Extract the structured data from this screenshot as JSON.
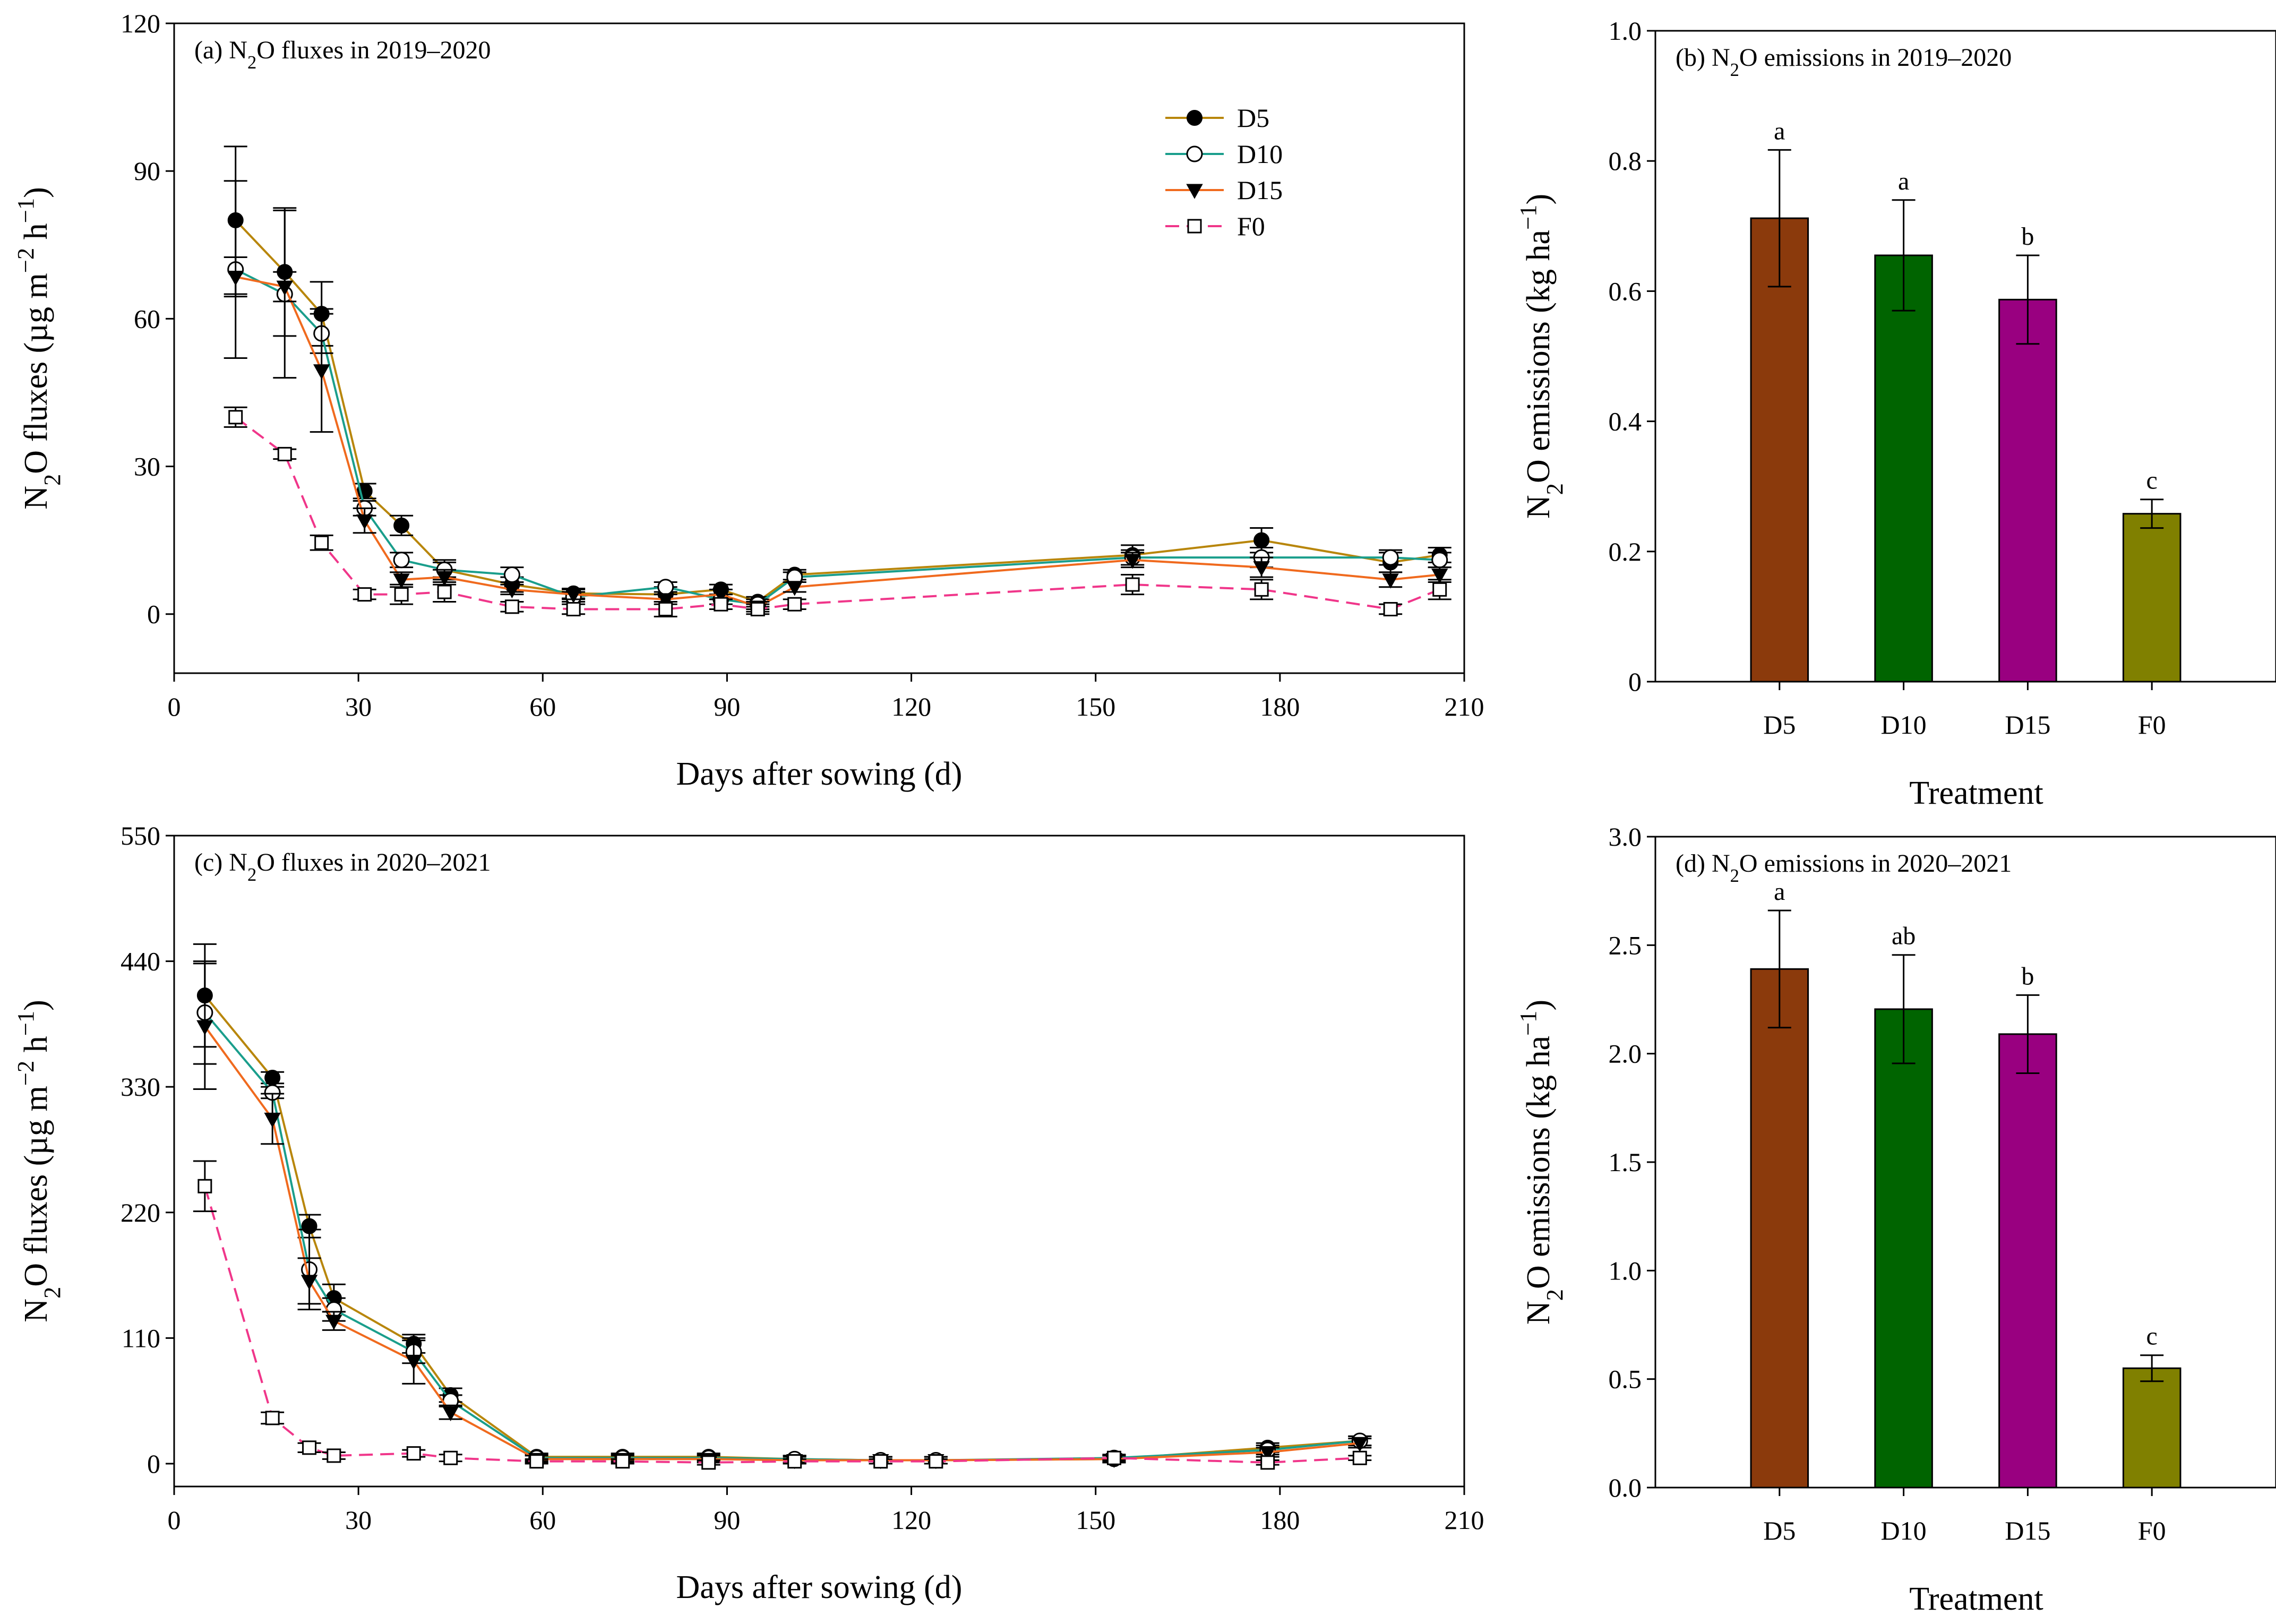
{
  "chart_data": [
    {
      "id": "a",
      "type": "line",
      "title": "(a) N₂O fluxes in 2019–2020",
      "title_prefix": "(a) N",
      "title_sub": "2",
      "title_suffix": "O fluxes in 2019–2020",
      "xlabel": "Days after sowing (d)",
      "ylabel_parts": [
        "N",
        "2",
        "O fluxes (µg m",
        "−2",
        " h",
        "−1",
        ")"
      ],
      "xlim": [
        0,
        210
      ],
      "ylim": [
        -12,
        120
      ],
      "xticks": [
        0,
        30,
        60,
        90,
        120,
        150,
        180,
        210
      ],
      "yticks": [
        0,
        30,
        60,
        90,
        120
      ],
      "legend": [
        "D5",
        "D10",
        "D15",
        "F0"
      ],
      "x": [
        10,
        18,
        24,
        31,
        37,
        44,
        55,
        65,
        80,
        89,
        95,
        101,
        156,
        177,
        198,
        206
      ],
      "series": [
        {
          "name": "D5",
          "color": "#B8860B",
          "marker": "filled-circle",
          "dash": false,
          "values": [
            80,
            69.5,
            61,
            25,
            18,
            9,
            6,
            4.2,
            4,
            5,
            2.5,
            8,
            12,
            15,
            10.5,
            12
          ],
          "errors": [
            15,
            13,
            6.5,
            1.5,
            2,
            2,
            1.5,
            1,
            1.5,
            1,
            1,
            1,
            2,
            2.5,
            2,
            1.5
          ]
        },
        {
          "name": "D10",
          "color": "#1A9E8C",
          "marker": "open-circle",
          "dash": false,
          "values": [
            70,
            65,
            57,
            21.5,
            11,
            9,
            8,
            3.5,
            5.5,
            3,
            2,
            7.5,
            11.5,
            11.5,
            11.5,
            11
          ],
          "errors": [
            18,
            17,
            4,
            1.5,
            1.5,
            1.5,
            1.5,
            1,
            1,
            1,
            1,
            1,
            1.5,
            2,
            1.5,
            1.5
          ]
        },
        {
          "name": "D15",
          "color": "#F06A1E",
          "marker": "filled-triangle",
          "dash": false,
          "values": [
            68.5,
            66.5,
            49.5,
            19,
            7,
            7.5,
            5,
            4,
            3,
            4,
            1.5,
            5.5,
            11,
            9.5,
            7,
            8
          ],
          "errors": [
            4,
            3,
            12.5,
            2.5,
            1.5,
            1.5,
            1,
            1,
            1,
            1,
            1,
            1,
            1.5,
            2,
            1.5,
            1.5
          ]
        },
        {
          "name": "F0",
          "color": "#F0368A",
          "marker": "open-square",
          "dash": true,
          "values": [
            40,
            32.5,
            14.5,
            4,
            4,
            4.5,
            1.5,
            1,
            1,
            2,
            1,
            2,
            6,
            5,
            1,
            5
          ],
          "errors": [
            2,
            1,
            1.5,
            1,
            2,
            2,
            1,
            1,
            1.5,
            1,
            1,
            1,
            2,
            2,
            1,
            2
          ]
        }
      ]
    },
    {
      "id": "b",
      "type": "bar",
      "title": "(b) N₂O emissions in 2019–2020",
      "title_prefix": "(b) N",
      "title_sub": "2",
      "title_suffix": "O emissions in 2019–2020",
      "xlabel": "Treatment",
      "ylabel_parts": [
        "N",
        "2",
        "O emissions (kg ha",
        "−1",
        ")"
      ],
      "ylim": [
        0,
        1.0
      ],
      "yticks": [
        "0",
        "0.2",
        "0.4",
        "0.6",
        "0.8",
        "1.0"
      ],
      "ytick_values": [
        0,
        0.2,
        0.4,
        0.6,
        0.8,
        1.0
      ],
      "categories": [
        "D5",
        "D10",
        "D15",
        "F0"
      ],
      "values": [
        0.712,
        0.655,
        0.587,
        0.258
      ],
      "errors": [
        0.105,
        0.085,
        0.068,
        0.022
      ],
      "letters": [
        "a",
        "a",
        "b",
        "c"
      ],
      "colors": [
        "#8B3A0C",
        "#006400",
        "#990080",
        "#808000"
      ]
    },
    {
      "id": "c",
      "type": "line",
      "title": "(c) N₂O fluxes in 2020–2021",
      "title_prefix": "(c) N",
      "title_sub": "2",
      "title_suffix": "O fluxes in 2020–2021",
      "xlabel": "Days after sowing (d)",
      "ylabel_parts": [
        "N",
        "2",
        "O fluxes (µg m",
        "−2",
        " h",
        "−1",
        ")"
      ],
      "xlim": [
        0,
        210
      ],
      "ylim": [
        -20,
        550
      ],
      "xticks": [
        0,
        30,
        60,
        90,
        120,
        150,
        180,
        210
      ],
      "yticks": [
        0,
        110,
        220,
        330,
        440,
        550
      ],
      "x": [
        5,
        16,
        22,
        26,
        39,
        45,
        59,
        73,
        87,
        101,
        115,
        124,
        153,
        178,
        193
      ],
      "series": [
        {
          "name": "D5",
          "color": "#B8860B",
          "marker": "filled-circle",
          "dash": false,
          "values": [
            410,
            338,
            208,
            145,
            105,
            60,
            6,
            6,
            6,
            4,
            3,
            3,
            4,
            14,
            20
          ],
          "errors": [
            45,
            5,
            10,
            12,
            8,
            6,
            3,
            3,
            3,
            3,
            3,
            3,
            3,
            4,
            4
          ]
        },
        {
          "name": "D10",
          "color": "#1A9E8C",
          "marker": "open-circle",
          "dash": false,
          "values": [
            395,
            325,
            170,
            135,
            98,
            55,
            5,
            5,
            5,
            4,
            3,
            3,
            5,
            12,
            20
          ],
          "errors": [
            45,
            5,
            35,
            10,
            10,
            5,
            3,
            3,
            3,
            3,
            3,
            3,
            3,
            4,
            4
          ]
        },
        {
          "name": "D15",
          "color": "#F06A1E",
          "marker": "filled-triangle",
          "dash": false,
          "values": [
            383,
            302,
            160,
            125,
            90,
            45,
            4,
            4,
            4,
            3,
            3,
            3,
            4,
            10,
            18
          ],
          "errors": [
            55,
            22,
            20,
            8,
            20,
            6,
            3,
            3,
            3,
            3,
            3,
            3,
            3,
            4,
            4
          ]
        },
        {
          "name": "F0",
          "color": "#F0368A",
          "marker": "open-square",
          "dash": true,
          "values": [
            243,
            40,
            14,
            7,
            9,
            5,
            2,
            2,
            1,
            2,
            2,
            2,
            5,
            1,
            5
          ],
          "errors": [
            22,
            5,
            4,
            3,
            3,
            3,
            2,
            2,
            2,
            2,
            2,
            2,
            2,
            2,
            2
          ]
        }
      ]
    },
    {
      "id": "d",
      "type": "bar",
      "title": "(d) N₂O emissions in 2020–2021",
      "title_prefix": "(d) N",
      "title_sub": "2",
      "title_suffix": "O emissions in 2020–2021",
      "xlabel": "Treatment",
      "ylabel_parts": [
        "N",
        "2",
        "O emissions (kg ha",
        "−1",
        ")"
      ],
      "ylim": [
        0,
        3.0
      ],
      "yticks": [
        "0.0",
        "0.5",
        "1.0",
        "1.5",
        "2.0",
        "2.5",
        "3.0"
      ],
      "ytick_values": [
        0,
        0.5,
        1.0,
        1.5,
        2.0,
        2.5,
        3.0
      ],
      "categories": [
        "D5",
        "D10",
        "D15",
        "F0"
      ],
      "values": [
        2.39,
        2.205,
        2.09,
        0.55
      ],
      "errors": [
        0.27,
        0.25,
        0.18,
        0.06
      ],
      "letters": [
        "a",
        "ab",
        "b",
        "c"
      ],
      "colors": [
        "#8B3A0C",
        "#006400",
        "#990080",
        "#808000"
      ]
    }
  ]
}
